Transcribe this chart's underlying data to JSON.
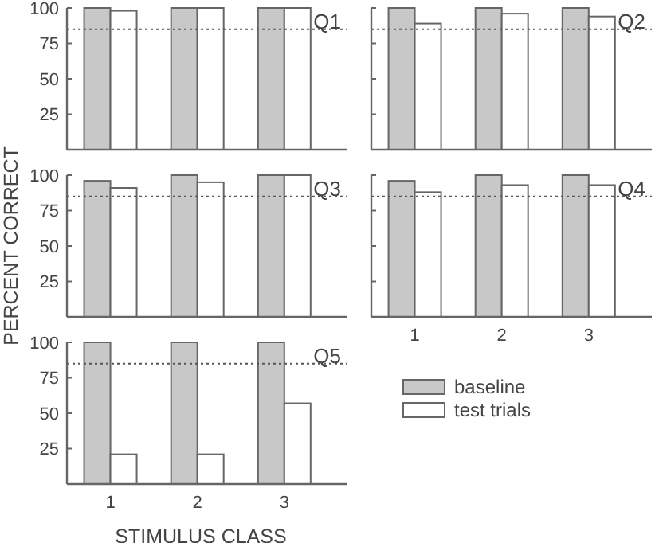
{
  "chart_data": [
    {
      "type": "bar",
      "title": "Q1",
      "categories": [
        "1",
        "2",
        "3"
      ],
      "series": [
        {
          "color": "#c8c8c8",
          "values": [
            100,
            100,
            100
          ]
        },
        {
          "color": "#ffffff",
          "values": [
            98,
            100,
            100
          ]
        }
      ],
      "ylim": [
        0,
        100
      ],
      "yticks": [
        25,
        50,
        75,
        100
      ],
      "tick_labels": "y",
      "ref_lines": [
        {
          "axis": "y",
          "value": 85,
          "line_style": "dotted"
        }
      ],
      "legend": false
    },
    {
      "type": "bar",
      "title": "Q2",
      "categories": [
        "1",
        "2",
        "3"
      ],
      "series": [
        {
          "color": "#c8c8c8",
          "values": [
            100,
            100,
            100
          ]
        },
        {
          "color": "#ffffff",
          "values": [
            89,
            96,
            94
          ]
        }
      ],
      "ylim": [
        0,
        100
      ],
      "yticks": [
        25,
        50,
        75,
        100
      ],
      "tick_labels": false,
      "ref_lines": [
        {
          "axis": "y",
          "value": 85,
          "line_style": "dotted"
        }
      ],
      "legend": false
    },
    {
      "type": "bar",
      "title": "Q3",
      "ylabel": "PERCENT CORRECT",
      "categories": [
        "1",
        "2",
        "3"
      ],
      "series": [
        {
          "color": "#c8c8c8",
          "values": [
            96,
            100,
            100
          ]
        },
        {
          "color": "#ffffff",
          "values": [
            91,
            95,
            100
          ]
        }
      ],
      "ylim": [
        0,
        100
      ],
      "yticks": [
        25,
        50,
        75,
        100
      ],
      "tick_labels": "y",
      "ref_lines": [
        {
          "axis": "y",
          "value": 85,
          "line_style": "dotted"
        }
      ],
      "legend": false
    },
    {
      "type": "bar",
      "title": "Q4",
      "categories": [
        "1",
        "2",
        "3"
      ],
      "series": [
        {
          "color": "#c8c8c8",
          "values": [
            96,
            100,
            100
          ]
        },
        {
          "color": "#ffffff",
          "values": [
            88,
            93,
            93
          ]
        }
      ],
      "ylim": [
        0,
        100
      ],
      "yticks": [
        25,
        50,
        75,
        100
      ],
      "tick_labels": "x",
      "ref_lines": [
        {
          "axis": "y",
          "value": 85,
          "line_style": "dotted"
        }
      ],
      "legend": false
    },
    {
      "type": "bar",
      "title": "Q5",
      "xlabel": "STIMULUS CLASS",
      "categories": [
        "1",
        "2",
        "3"
      ],
      "series": [
        {
          "name": "baseline",
          "color": "#c8c8c8",
          "values": [
            100,
            100,
            100
          ]
        },
        {
          "name": "test trials",
          "color": "#ffffff",
          "values": [
            21,
            21,
            57
          ]
        }
      ],
      "ylim": [
        0,
        100
      ],
      "yticks": [
        25,
        50,
        75,
        100
      ],
      "ref_lines": [
        {
          "axis": "y",
          "value": 85,
          "line_style": "dotted"
        }
      ],
      "legend": "right"
    }
  ]
}
